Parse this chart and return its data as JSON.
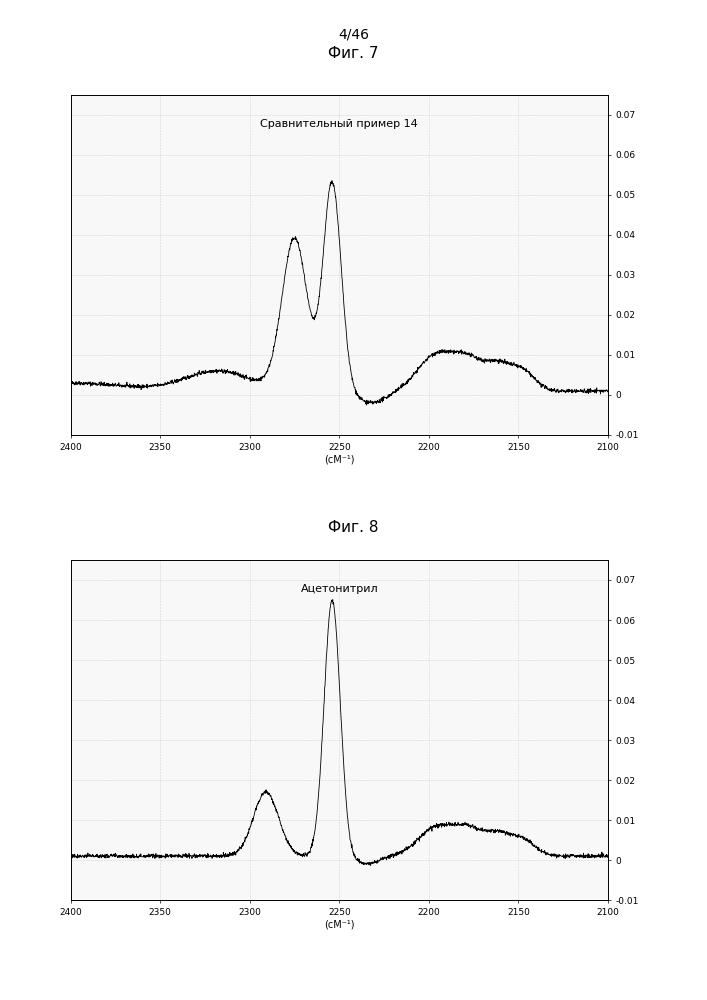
{
  "fig_label": "4/46",
  "fig7_title": "Фиг. 7",
  "fig8_title": "Фиг. 8",
  "chart1_title": "Сравнительный пример 14",
  "chart2_title": "Ацетонитрил",
  "xlabel": "(сМ⁻¹)",
  "xlim": [
    2400,
    2100
  ],
  "ylim": [
    -0.01,
    0.075
  ],
  "yticks": [
    -0.01,
    0,
    0.01,
    0.02,
    0.03,
    0.04,
    0.05,
    0.06,
    0.07
  ],
  "ytick_labels": [
    "-0.01",
    "0",
    "0.01",
    "0.02",
    "0.03",
    "0.04",
    "0.05",
    "0.06",
    "0.07"
  ],
  "xticks": [
    2400,
    2350,
    2300,
    2250,
    2200,
    2150,
    2100
  ],
  "background_color": "#ffffff",
  "plot_bg_color": "#f8f8f8",
  "line_color": "#000000",
  "grid_color": "#cccccc",
  "title_fontsize": 8,
  "tick_fontsize": 6.5,
  "label_fontsize": 7
}
